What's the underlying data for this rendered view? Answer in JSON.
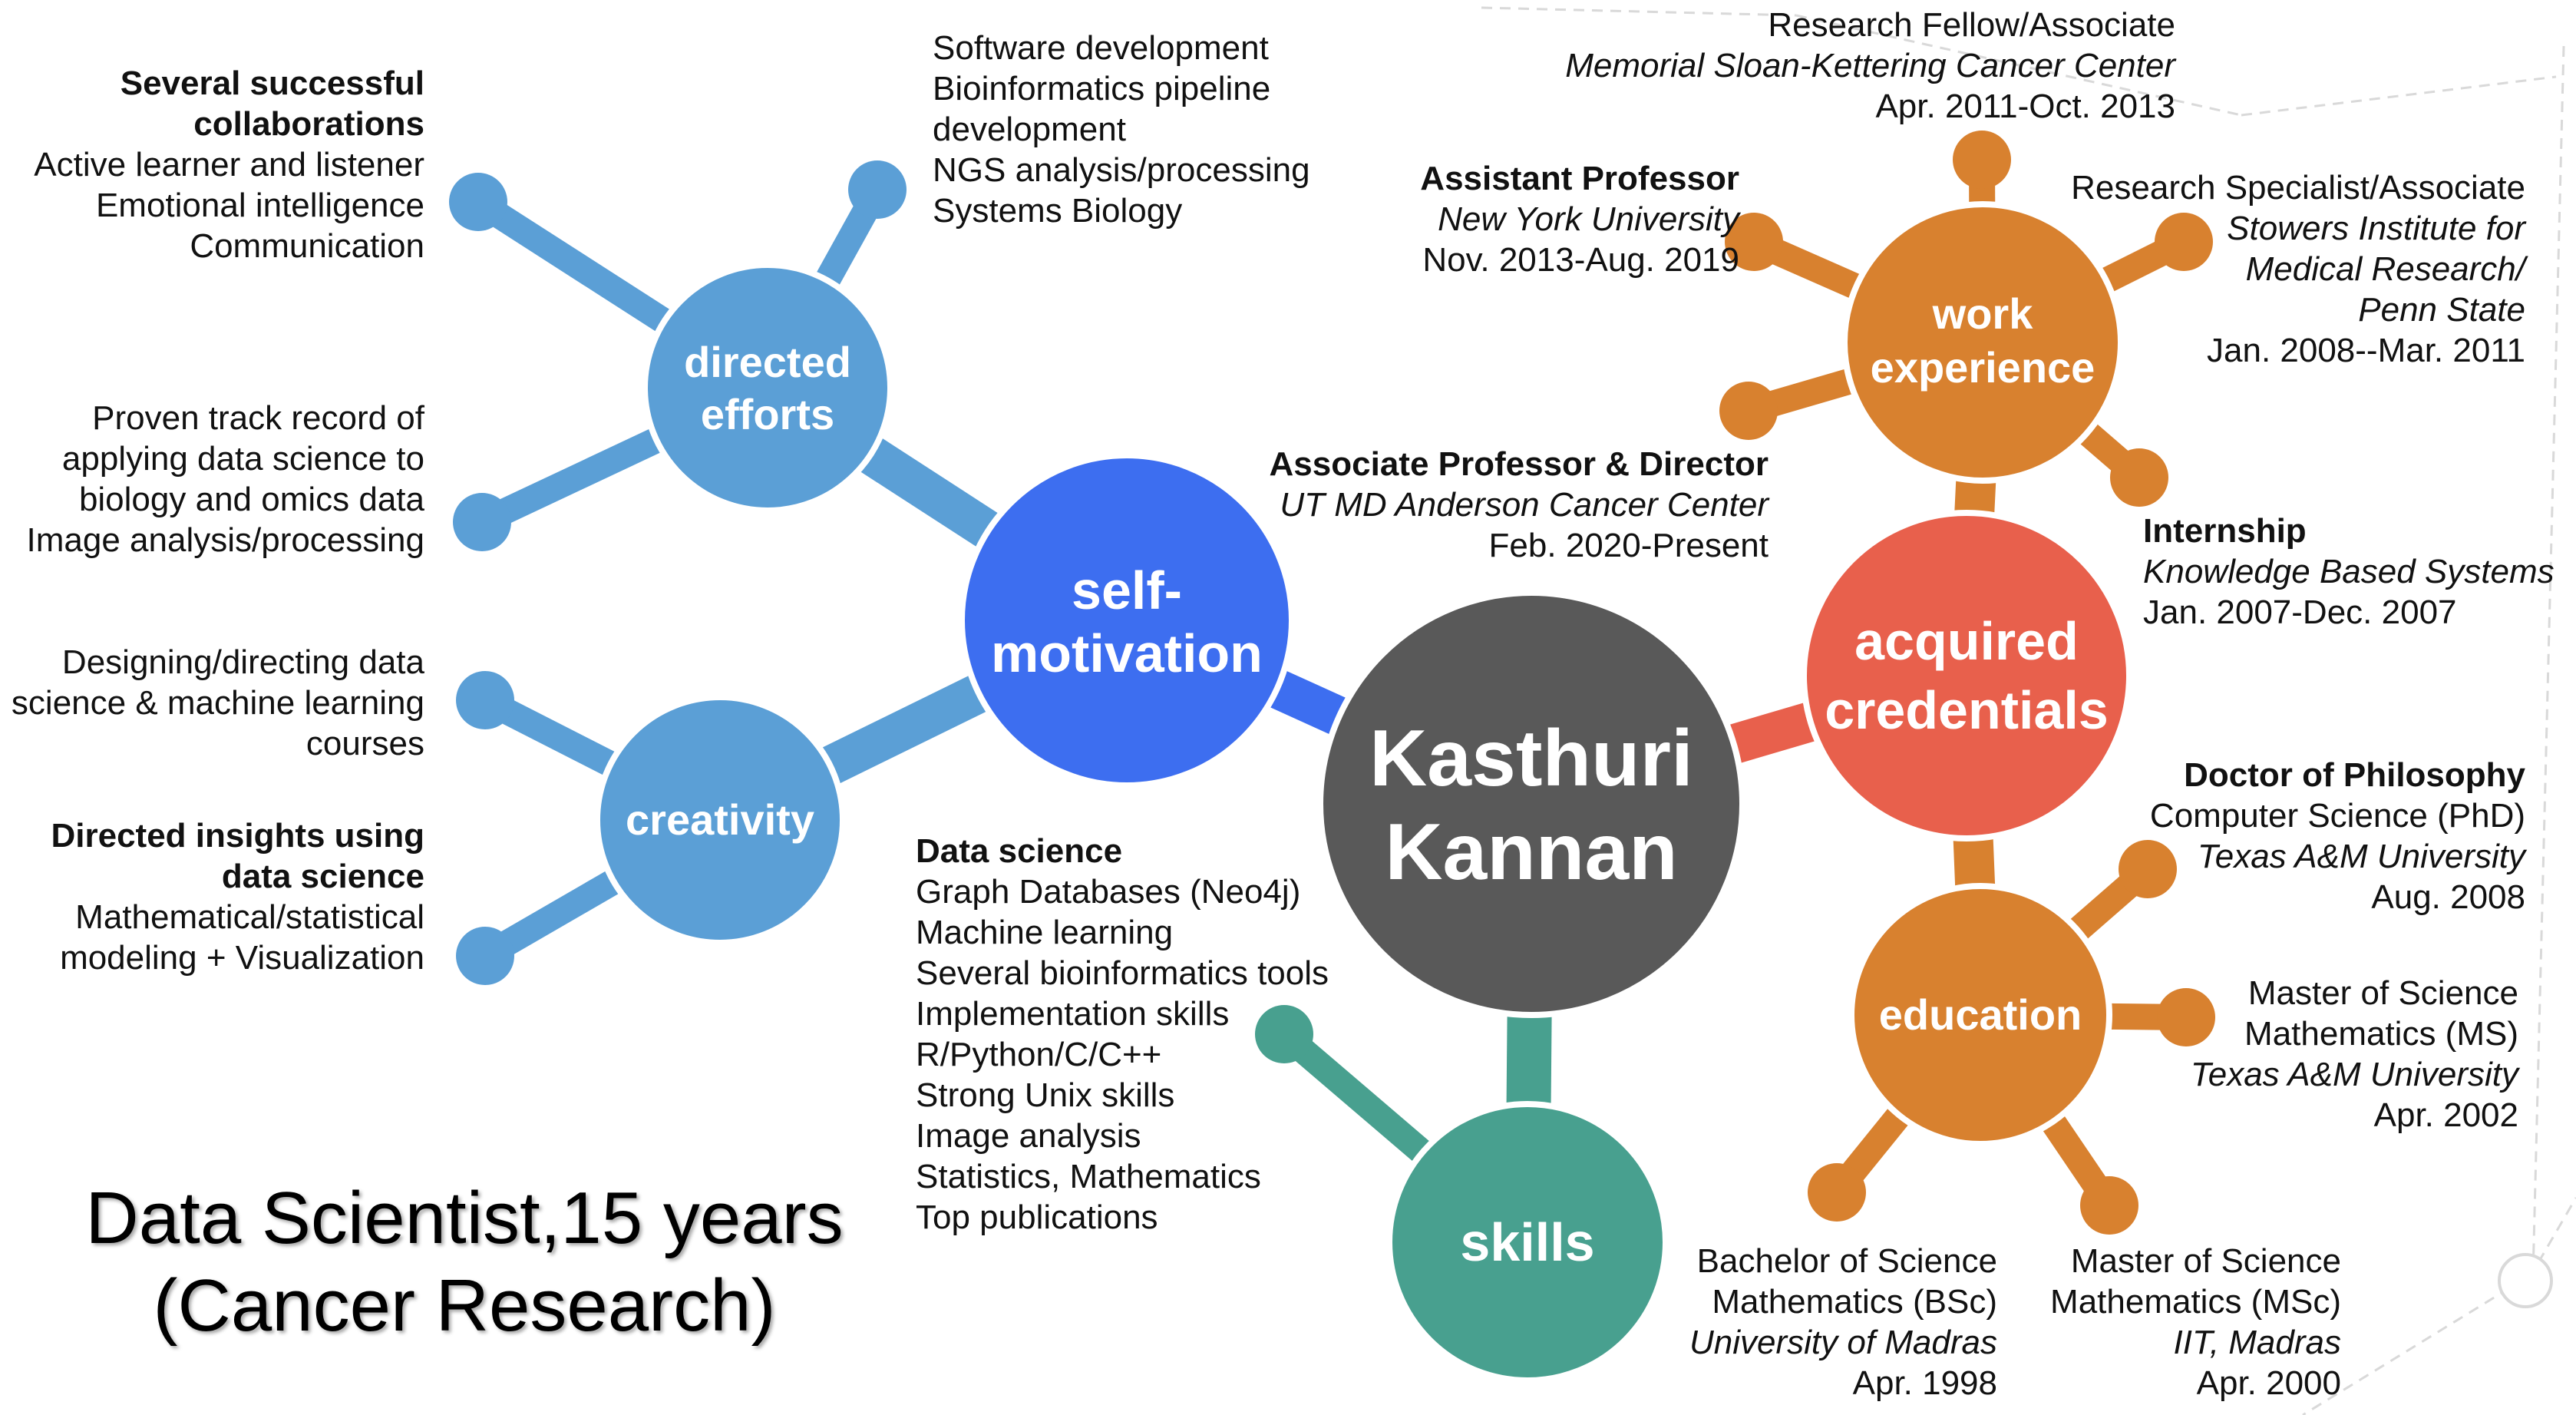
{
  "colors": {
    "center": "#595959",
    "self_motivation": "#3d6ef0",
    "light_blue": "#5b9fd6",
    "acquired": "#e8604c",
    "orange": "#d8812f",
    "skills": "#48a08f",
    "network": "#d9d9d9"
  },
  "center": {
    "line1": "Kasthuri",
    "line2": "Kannan"
  },
  "hubs": {
    "self_motivation": {
      "line1": "self-",
      "line2": "motivation"
    },
    "directed_efforts": {
      "line1": "directed",
      "line2": "efforts"
    },
    "creativity": {
      "line1": "creativity"
    },
    "acquired_credentials": {
      "line1": "acquired",
      "line2": "credentials"
    },
    "work_experience": {
      "line1": "work",
      "line2": "experience"
    },
    "education": {
      "line1": "education"
    },
    "skills": {
      "line1": "skills"
    }
  },
  "texts": {
    "collaborations": [
      "Several successful",
      "collaborations",
      "Active learner and listener",
      "Emotional intelligence",
      "Communication"
    ],
    "software": [
      "Software development",
      "Bioinformatics pipeline",
      "development",
      "NGS analysis/processing",
      "Systems Biology"
    ],
    "track_record": [
      "Proven track record of",
      "applying data science to",
      "biology and omics data",
      "Image analysis/processing"
    ],
    "designing": [
      "Designing/directing data",
      "science & machine learning",
      "courses"
    ],
    "insights": [
      "Directed insights using",
      "data science",
      "Mathematical/statistical",
      "modeling + Visualization"
    ],
    "data_science": [
      "Data science",
      "Graph Databases (Neo4j)",
      "Machine learning",
      "Several bioinformatics tools",
      "Implementation skills",
      "R/Python/C/C++",
      "Strong Unix skills",
      "Image analysis",
      "Statistics, Mathematics",
      "Top publications"
    ],
    "associate_professor": [
      "Associate Professor & Director",
      "UT MD Anderson Cancer Center",
      "Feb. 2020-Present"
    ],
    "assistant_professor": [
      "Assistant Professor",
      "New York University",
      "Nov. 2013-Aug. 2019"
    ],
    "research_fellow": [
      "Research Fellow/Associate",
      "Memorial Sloan-Kettering Cancer Center",
      "Apr. 2011-Oct. 2013"
    ],
    "research_specialist": [
      "Research Specialist/Associate",
      "Stowers Institute for",
      "Medical Research/",
      "Penn State",
      "Jan. 2008--Mar. 2011"
    ],
    "internship": [
      "Internship",
      "Knowledge Based Systems",
      "Jan. 2007-Dec. 2007"
    ],
    "phd": [
      "Doctor of Philosophy",
      "Computer Science (PhD)",
      "Texas A&M University",
      "Aug. 2008"
    ],
    "ms": [
      "Master of Science",
      "Mathematics (MS)",
      "Texas A&M University",
      "Apr. 2002"
    ],
    "bsc": [
      "Bachelor of Science",
      "Mathematics (BSc)",
      "University of Madras",
      "Apr. 1998"
    ],
    "msc": [
      "Master of Science",
      "Mathematics (MSc)",
      "IIT, Madras",
      "Apr. 2000"
    ]
  },
  "headline": {
    "line1": "Data Scientist,15 years",
    "line2": "(Cancer Research)"
  }
}
